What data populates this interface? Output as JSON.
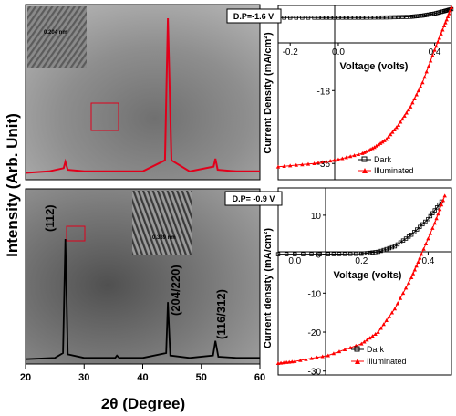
{
  "figure": {
    "left_ylabel": "Intensity (Arb. Unit)",
    "left_xlabel": "2θ (Degree)",
    "left_xticks": [
      "20",
      "30",
      "40",
      "50",
      "60"
    ],
    "top_right": {
      "box_label": "D.P=-1.6 V",
      "ylabel": "Current Density (mA/cm²)",
      "xlabel": "Voltage (volts)",
      "xticks": [
        "-0.2",
        "0.0",
        "0.4"
      ],
      "yticks": [
        "-18",
        "-36"
      ],
      "legend": [
        "Dark",
        "Illuminated"
      ],
      "hrtem_label": "0.204 nm"
    },
    "bottom_right": {
      "box_label": "D.P= -0.9 V",
      "ylabel": "Current density (mA/cm²)",
      "xlabel": "Voltage (volts)",
      "xticks": [
        "0.0",
        "0.2",
        "0.4"
      ],
      "yticks": [
        "10",
        "0",
        "-10",
        "-20",
        "-30"
      ],
      "legend": [
        "Dark",
        "Illuminated"
      ]
    },
    "bottom_left": {
      "peak_labels": [
        "(112)",
        "(204/220)",
        "(116/312)"
      ],
      "hrtem_label": "0.339 nm"
    }
  },
  "chart_data": [
    {
      "type": "line",
      "panel": "xrd-top",
      "xlabel": "2θ (Degree)",
      "ylabel": "Intensity (Arb. Unit)",
      "xlim": [
        20,
        60
      ],
      "series": [
        {
          "color": "#e0001b",
          "x": [
            20,
            24,
            26.5,
            26.8,
            27.2,
            30,
            35,
            40,
            43.8,
            44.3,
            44.9,
            48,
            52.1,
            52.4,
            52.8,
            56,
            60
          ],
          "y": [
            0.02,
            0.03,
            0.05,
            0.09,
            0.04,
            0.03,
            0.03,
            0.03,
            0.1,
            1.0,
            0.1,
            0.03,
            0.06,
            0.11,
            0.04,
            0.03,
            0.03
          ]
        }
      ]
    },
    {
      "type": "line",
      "panel": "xrd-bottom",
      "xlabel": "2θ (Degree)",
      "ylabel": "Intensity (Arb. Unit)",
      "xlim": [
        20,
        60
      ],
      "series": [
        {
          "color": "#000000",
          "x": [
            20,
            25,
            26.4,
            26.8,
            27.2,
            30,
            35.3,
            35.6,
            36,
            40,
            44,
            44.3,
            44.7,
            48,
            52,
            52.4,
            52.9,
            56,
            60
          ],
          "y": [
            0.01,
            0.02,
            0.06,
            1.0,
            0.05,
            0.02,
            0.02,
            0.04,
            0.02,
            0.02,
            0.06,
            0.48,
            0.04,
            0.02,
            0.04,
            0.16,
            0.03,
            0.02,
            0.02
          ]
        }
      ]
    },
    {
      "type": "line",
      "panel": "iv-top",
      "xlabel": "Voltage (volts)",
      "ylabel": "Current Density (mA/cm²)",
      "xlim": [
        -0.25,
        0.47
      ],
      "ylim": [
        -40,
        3
      ],
      "series": [
        {
          "name": "Dark",
          "color": "#000000",
          "x": [
            -0.25,
            -0.1,
            0.0,
            0.1,
            0.2,
            0.3,
            0.35,
            0.4,
            0.44,
            0.47
          ],
          "y": [
            0,
            0,
            0,
            0,
            0.05,
            0.2,
            0.5,
            1.0,
            1.6,
            2.1
          ]
        },
        {
          "name": "Illuminated",
          "color": "#ff0000",
          "x": [
            -0.25,
            -0.1,
            0.0,
            0.1,
            0.15,
            0.2,
            0.25,
            0.3,
            0.35,
            0.4,
            0.44,
            0.47
          ],
          "y": [
            -36.8,
            -36.0,
            -35.0,
            -33.5,
            -32.0,
            -30.0,
            -26.5,
            -22.0,
            -16.0,
            -8.0,
            -2.0,
            2.5
          ]
        }
      ]
    },
    {
      "type": "line",
      "panel": "iv-bottom",
      "xlabel": "Voltage (volts)",
      "ylabel": "Current density (mA/cm²)",
      "xlim": [
        -0.05,
        0.47
      ],
      "ylim": [
        -31,
        17
      ],
      "series": [
        {
          "name": "Dark",
          "color": "#000000",
          "x": [
            -0.05,
            0.1,
            0.2,
            0.25,
            0.3,
            0.35,
            0.4,
            0.44
          ],
          "y": [
            0,
            0,
            0.1,
            0.6,
            2.0,
            5.0,
            9.0,
            13.5
          ]
        },
        {
          "name": "Illuminated",
          "color": "#ff0000",
          "x": [
            -0.05,
            0.0,
            0.1,
            0.2,
            0.25,
            0.3,
            0.35,
            0.38,
            0.42,
            0.45
          ],
          "y": [
            -28.0,
            -27.5,
            -26.0,
            -23.0,
            -20.0,
            -14.0,
            -6.0,
            0.0,
            8.0,
            15.0
          ]
        }
      ]
    }
  ]
}
